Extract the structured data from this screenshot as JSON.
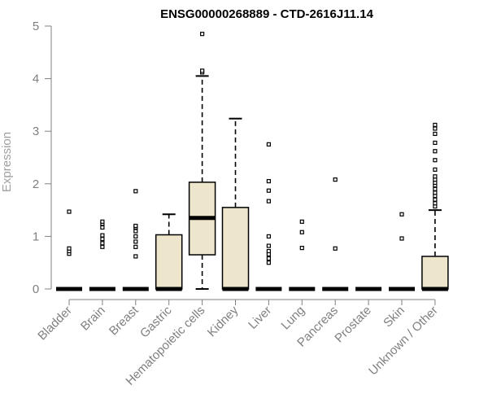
{
  "chart_data": {
    "type": "boxplot",
    "title": "ENSG00000268889 - CTD-2616J11.14",
    "xlabel": "",
    "ylabel": "Expression",
    "ylim": [
      0,
      5
    ],
    "yticks": [
      0,
      1,
      2,
      3,
      4,
      5
    ],
    "box_fill": "#ede6cc",
    "categories": [
      "Bladder",
      "Brain",
      "Breast",
      "Gastric",
      "Hematopoietic cells",
      "Kidney",
      "Liver",
      "Lung",
      "Pancreas",
      "Prostate",
      "Skin",
      "Unknown / Other"
    ],
    "boxes": [
      {
        "q1": 0,
        "median": 0,
        "q3": 0,
        "whisker_low": 0,
        "whisker_high": 0,
        "outliers": [
          0.67,
          0.72,
          0.77,
          1.47
        ]
      },
      {
        "q1": 0,
        "median": 0,
        "q3": 0,
        "whisker_low": 0,
        "whisker_high": 0,
        "outliers": [
          0.8,
          0.87,
          0.95,
          1.02,
          1.17,
          1.24,
          1.28
        ]
      },
      {
        "q1": 0,
        "median": 0,
        "q3": 0,
        "whisker_low": 0,
        "whisker_high": 0,
        "outliers": [
          0.62,
          0.8,
          0.9,
          1.0,
          1.1,
          1.17,
          1.2,
          1.86
        ]
      },
      {
        "q1": 0,
        "median": 0,
        "q3": 1.03,
        "whisker_low": 0,
        "whisker_high": 1.42,
        "outliers": []
      },
      {
        "q1": 0.65,
        "median": 1.35,
        "q3": 2.03,
        "whisker_low": 0,
        "whisker_high": 4.05,
        "outliers": [
          4.12,
          4.15,
          4.85
        ]
      },
      {
        "q1": 0,
        "median": 0,
        "q3": 1.55,
        "whisker_low": 0,
        "whisker_high": 3.24,
        "outliers": []
      },
      {
        "q1": 0,
        "median": 0,
        "q3": 0,
        "whisker_low": 0,
        "whisker_high": 0,
        "outliers": [
          0.5,
          0.58,
          0.66,
          0.72,
          0.82,
          1.0,
          1.67,
          1.87,
          2.05,
          2.75
        ]
      },
      {
        "q1": 0,
        "median": 0,
        "q3": 0,
        "whisker_low": 0,
        "whisker_high": 0,
        "outliers": [
          0.78,
          1.08,
          1.28
        ]
      },
      {
        "q1": 0,
        "median": 0,
        "q3": 0,
        "whisker_low": 0,
        "whisker_high": 0,
        "outliers": [
          0.77,
          2.08
        ]
      },
      {
        "q1": 0,
        "median": 0,
        "q3": 0,
        "whisker_low": 0,
        "whisker_high": 0,
        "outliers": []
      },
      {
        "q1": 0,
        "median": 0,
        "q3": 0,
        "whisker_low": 0,
        "whisker_high": 0,
        "outliers": [
          0.96,
          1.42
        ]
      },
      {
        "q1": 0,
        "median": 0,
        "q3": 0.62,
        "whisker_low": 0,
        "whisker_high": 1.5,
        "outliers": [
          1.57,
          1.63,
          1.7,
          1.77,
          1.83,
          1.9,
          1.97,
          2.02,
          2.08,
          2.14,
          2.27,
          2.45,
          2.62,
          2.78,
          2.95,
          3.05,
          3.12
        ]
      }
    ]
  }
}
